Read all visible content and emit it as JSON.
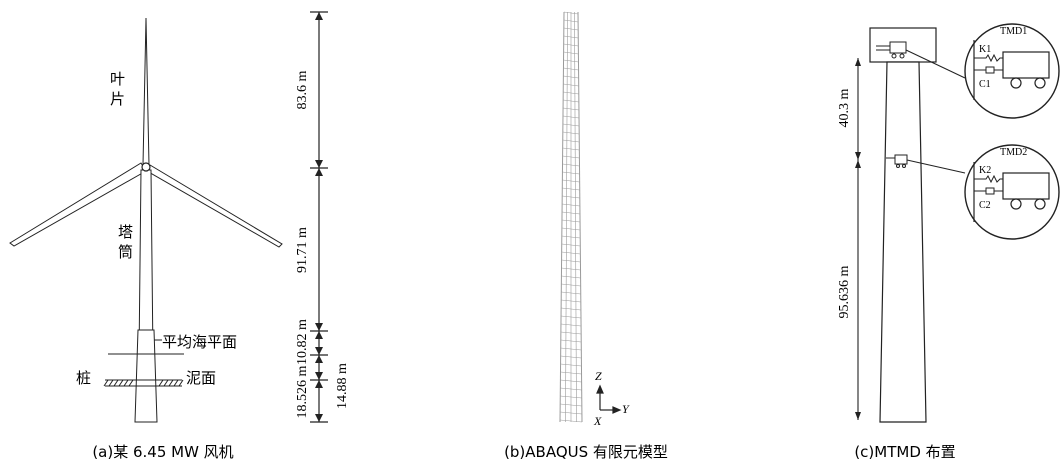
{
  "panel_a": {
    "label_blade": "叶片",
    "label_tower": "塔筒",
    "label_msl": "平均海平面",
    "label_pile": "桩",
    "label_mudline": "泥面",
    "dims": [
      "83.6 m",
      "91.71 m",
      "10.82 m",
      "14.88 m",
      "18.526 m"
    ],
    "caption": "(a)某 6.45 MW 风机"
  },
  "panel_b": {
    "axis_z": "Z",
    "axis_y": "Y",
    "axis_x": "X",
    "caption": "(b)ABAQUS 有限元模型"
  },
  "panel_c": {
    "dims": [
      "40.3 m",
      "95.636 m"
    ],
    "tmd1": {
      "title": "TMD1",
      "k": "K1",
      "c": "C1"
    },
    "tmd2": {
      "title": "TMD2",
      "k": "K2",
      "c": "C2"
    },
    "caption": "(c)MTMD 布置"
  }
}
